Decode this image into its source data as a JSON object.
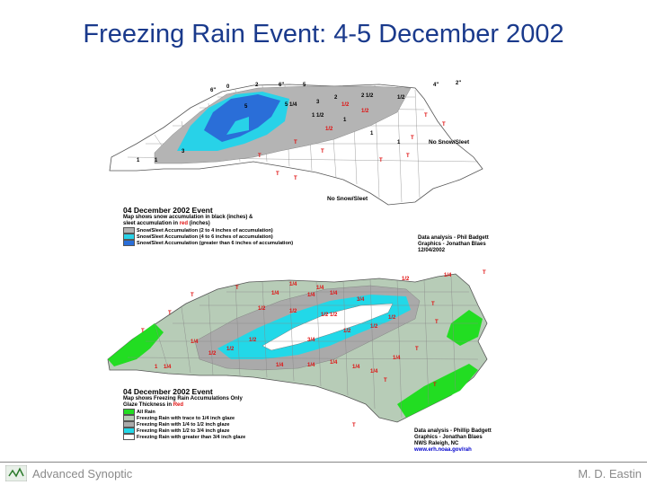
{
  "slide": {
    "title": "Freezing Rain Event: 4-5 December 2002",
    "footer_left": "Advanced Synoptic",
    "footer_right": "M. D. Eastin"
  },
  "top_map": {
    "event_title": "04 December 2002 Event",
    "subtitle_line1": "Map shows snow accumulation in black (inches) &",
    "subtitle_line2_pre": "sleet accumulation in ",
    "subtitle_line2_red": "red",
    "subtitle_line2_post": " (inches)",
    "no_snow_label_east": "No Snow/Sleet",
    "no_snow_label_south": "No Snow/Sleet",
    "legend": [
      {
        "label": "Snow/Sleet Accumulation (2 to 4 inches of accumulation)",
        "color": "#b4b4b4"
      },
      {
        "label": "Snow/Sleet Accumulation (4 to 6 inches of accumulation)",
        "color": "#28d2e8"
      },
      {
        "label": "Snow/Sleet Accumulation (greater than 6 inches of accumulation)",
        "color": "#2a6ed8"
      }
    ],
    "credit_line1": "Data analysis - Phil Badgett",
    "credit_line2": "Graphics - Jonathan Blaes",
    "credit_line3": "12/04/2002",
    "top_labels": [
      "6\"",
      "0",
      "2",
      "6\"",
      "5",
      "4\"",
      "2\""
    ]
  },
  "bottom_map": {
    "event_title": "04 December 2002 Event",
    "subtitle_line1": "Map shows Freezing Rain Accumulations Only",
    "subtitle_line2_pre": "Glaze Thickness in ",
    "subtitle_line2_red": "Red",
    "legend": [
      {
        "label": "All Rain",
        "color": "#22dd22"
      },
      {
        "label": "Freezing Rain with trace to 1/4 inch glaze",
        "color": "#b7ccb7"
      },
      {
        "label": "Freezing Rain with 1/4 to 1/2 inch glaze",
        "color": "#aaaaaa"
      },
      {
        "label": "Freezing Rain with 1/2 to 3/4 inch glaze",
        "color": "#22d8e8"
      },
      {
        "label": "Freezing Rain with greater than 3/4 inch glaze",
        "color": "#ffffff"
      }
    ],
    "credit_line1": "Data analysis - Phillip Badgett",
    "credit_line2": "Graphics - Jonathan Blaes",
    "credit_line3": "NWS Raleigh, NC",
    "credit_url": "www.erh.noaa.gov/rah"
  },
  "colors": {
    "title": "#1a3a8c",
    "snow_dark_blue": "#2a6ed8",
    "snow_cyan": "#28d2e8",
    "snow_gray": "#b4b4b4",
    "rain_green": "#22dd22",
    "glaze_sage": "#b7ccb7",
    "glaze_gray": "#aaaaaa",
    "glaze_cyan": "#22d8e8",
    "label_red": "#e01010"
  }
}
